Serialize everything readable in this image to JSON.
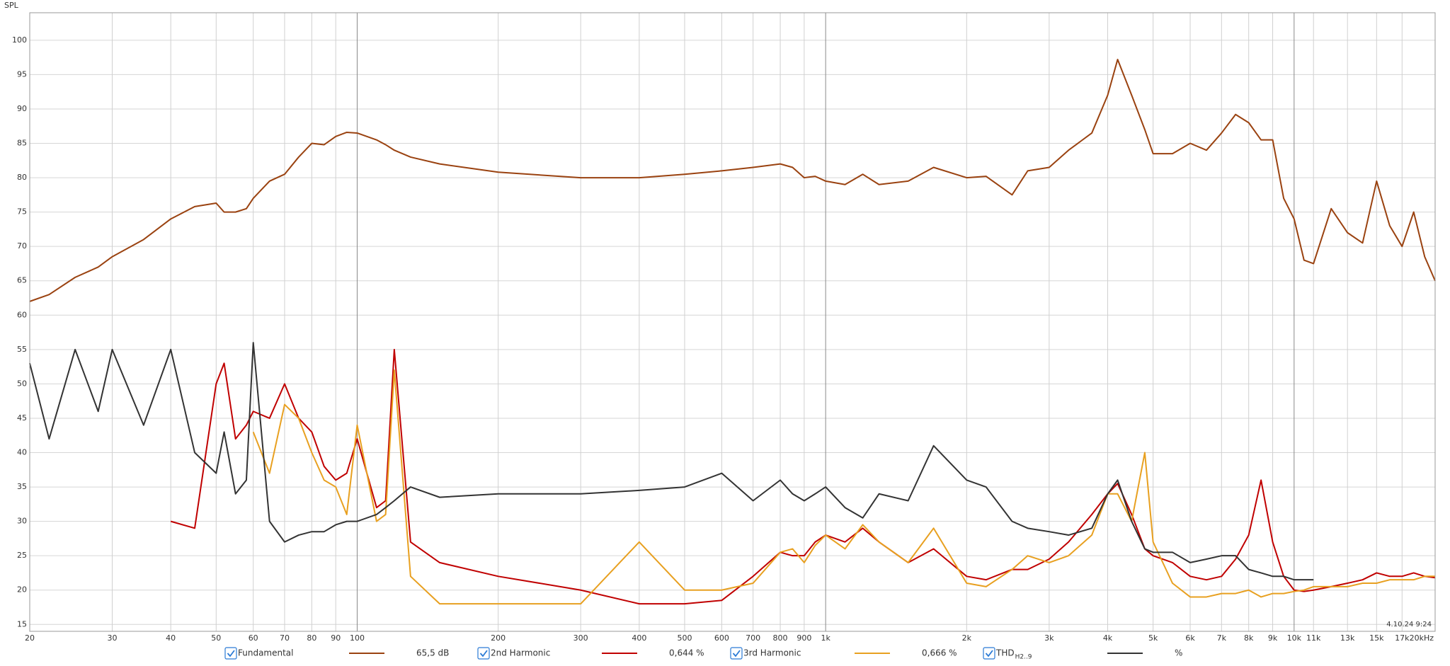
{
  "chart_data": {
    "type": "line",
    "y_label": "SPL",
    "timestamp": "4.10.24 9:24",
    "xscale": "log",
    "grid": true,
    "xlim": [
      20,
      20000
    ],
    "ylim": [
      14,
      104
    ],
    "yticks": [
      15,
      20,
      25,
      30,
      35,
      40,
      45,
      50,
      55,
      60,
      65,
      70,
      75,
      80,
      85,
      90,
      95,
      100
    ],
    "xticks": [
      20,
      30,
      40,
      50,
      60,
      70,
      80,
      90,
      100,
      200,
      300,
      400,
      500,
      600,
      700,
      800,
      900,
      {
        "value": 1000,
        "label": "1k"
      },
      {
        "value": 2000,
        "label": "2k"
      },
      {
        "value": 3000,
        "label": "3k"
      },
      {
        "value": 4000,
        "label": "4k"
      },
      {
        "value": 5000,
        "label": "5k"
      },
      {
        "value": 6000,
        "label": "6k"
      },
      {
        "value": 7000,
        "label": "7k"
      },
      {
        "value": 8000,
        "label": "8k"
      },
      {
        "value": 9000,
        "label": "9k"
      },
      {
        "value": 10000,
        "label": "10k"
      },
      {
        "value": 11000,
        "label": "11k"
      },
      {
        "value": 13000,
        "label": "13k"
      },
      {
        "value": 15000,
        "label": "15k"
      },
      {
        "value": 17000,
        "label": "17k"
      },
      {
        "value": 20000,
        "label": "20kHz"
      }
    ],
    "x": [
      20,
      22,
      25,
      28,
      30,
      35,
      40,
      45,
      50,
      52,
      55,
      58,
      60,
      65,
      70,
      75,
      80,
      85,
      90,
      95,
      100,
      110,
      115,
      120,
      130,
      150,
      200,
      300,
      400,
      500,
      600,
      700,
      800,
      850,
      900,
      950,
      1000,
      1100,
      1200,
      1300,
      1500,
      1700,
      2000,
      2200,
      2500,
      2700,
      3000,
      3300,
      3700,
      4000,
      4200,
      4500,
      4800,
      5000,
      5500,
      6000,
      6500,
      7000,
      7500,
      8000,
      8500,
      9000,
      9500,
      10000,
      10500,
      11000,
      12000,
      13000,
      14000,
      15000,
      16000,
      17000,
      18000,
      19000,
      20000
    ],
    "series": [
      {
        "name": "Fundamental",
        "readout": "65,5 dB",
        "color": "#9a4210",
        "values": [
          62,
          63,
          65.5,
          67,
          68.5,
          71,
          74,
          75.8,
          76.3,
          75,
          75,
          75.5,
          77,
          79.5,
          80.5,
          83,
          85,
          84.8,
          86,
          86.6,
          86.5,
          85.5,
          84.8,
          84,
          83,
          82,
          80.8,
          80,
          80,
          80.5,
          81,
          81.5,
          82,
          81.5,
          80,
          80.2,
          79.5,
          79,
          80.5,
          79,
          79.5,
          81.5,
          80,
          80.2,
          77.5,
          81,
          81.5,
          84,
          86.5,
          92,
          97.2,
          92,
          87,
          83.5,
          83.5,
          85,
          84,
          86.5,
          89.2,
          88,
          85.5,
          85.5,
          77,
          74,
          68,
          67.5,
          75.5,
          72,
          70.5,
          79.5,
          73,
          70,
          75,
          68.5,
          65
        ]
      },
      {
        "name": "2nd Harmonic",
        "readout": "0,644 %",
        "color": "#c00000",
        "values": [
          null,
          null,
          null,
          null,
          null,
          null,
          30,
          29,
          50,
          53,
          42,
          44,
          46,
          45,
          50,
          45,
          43,
          38,
          36,
          37,
          42,
          32,
          33,
          55,
          27,
          24,
          22,
          20,
          18,
          18,
          18.5,
          22,
          25.5,
          25,
          25,
          27,
          28,
          27,
          29,
          27,
          24,
          26,
          22,
          21.5,
          23,
          23,
          24.5,
          27,
          31,
          34,
          35.5,
          31,
          26,
          25,
          24,
          22,
          21.5,
          22,
          24.5,
          28,
          36,
          27,
          22,
          20,
          19.8,
          20,
          20.5,
          21,
          21.5,
          22.5,
          22,
          22,
          22.5,
          22,
          21.8
        ]
      },
      {
        "name": "3rd Harmonic",
        "readout": "0,666 %",
        "color": "#e8a020",
        "values": [
          null,
          null,
          null,
          null,
          null,
          null,
          null,
          null,
          null,
          null,
          null,
          null,
          43,
          37,
          47,
          45,
          40,
          36,
          35,
          31,
          44,
          30,
          31,
          52,
          22,
          18,
          18,
          18,
          27,
          20,
          20,
          21,
          25.5,
          26,
          24,
          26.5,
          28,
          26,
          29.5,
          27,
          24,
          29,
          21,
          20.5,
          23,
          25,
          24,
          25,
          28,
          34,
          34,
          30,
          40,
          27,
          21,
          19,
          19,
          19.5,
          19.5,
          20,
          19,
          19.5,
          19.5,
          19.8,
          20,
          20.5,
          20.5,
          20.5,
          21,
          21,
          21.5,
          21.5,
          21.5,
          22,
          22
        ]
      },
      {
        "name": "THD",
        "name_sub": "H2..9",
        "readout": "%",
        "color": "#333333",
        "values": [
          53,
          42,
          55,
          46,
          55,
          44,
          55,
          40,
          37,
          43,
          34,
          36,
          56,
          30,
          27,
          28,
          28.5,
          28.5,
          29.5,
          30,
          30,
          31,
          32,
          33,
          35,
          33.5,
          34,
          34,
          34.5,
          35,
          37,
          33,
          36,
          34,
          33,
          34,
          35,
          32,
          30.5,
          34,
          33,
          41,
          36,
          35,
          30,
          29,
          28.5,
          28,
          29,
          34,
          36,
          30,
          26,
          25.5,
          25.5,
          24,
          24.5,
          25,
          25,
          23,
          22.5,
          22,
          22,
          21.5,
          21.5,
          21.5,
          null,
          null,
          null,
          null,
          null,
          null,
          null,
          null,
          null
        ]
      }
    ]
  }
}
